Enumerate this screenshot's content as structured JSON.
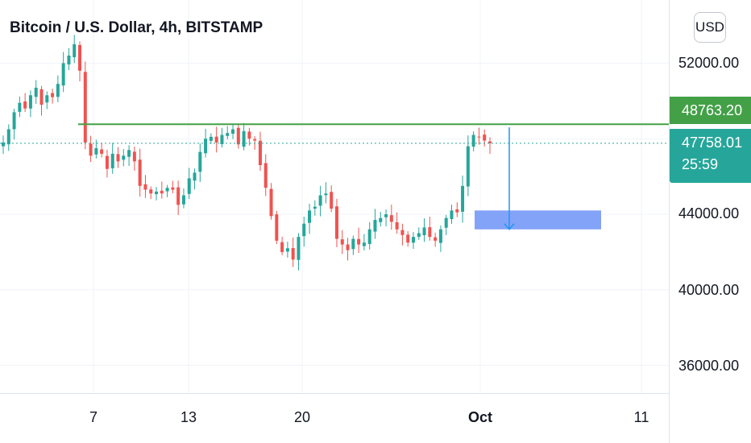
{
  "header": {
    "title": "Bitcoin / U.S. Dollar, 4h, BITSTAMP",
    "currency": "USD"
  },
  "price_axis": {
    "ticks": [
      "52000.00",
      "44000.00",
      "40000.00",
      "36000.00"
    ]
  },
  "time_axis": {
    "ticks": [
      "7",
      "13",
      "20",
      "Oct",
      "11"
    ],
    "major": "Oct"
  },
  "badges": {
    "level_price": "48763.20",
    "last_price": "47758.01",
    "countdown": "25:59"
  },
  "colors": {
    "up": "#26a69a",
    "down": "#ef5350",
    "level_line": "#43a047",
    "last_price_line": "#26a69a",
    "target_box": "#7c9ef8",
    "arrow": "#2196f3",
    "grid": "#f0f3fa"
  },
  "chart_data": {
    "type": "candlestick",
    "symbol": "Bitcoin / U.S. Dollar",
    "interval": "4h",
    "exchange": "BITSTAMP",
    "ylim": [
      34500,
      55000
    ],
    "horizontal_level": 48763.2,
    "last_price": 47758.01,
    "target_zone": {
      "low": 43200,
      "high": 44200
    },
    "projection_arrow": {
      "from": 48600,
      "to": 43200
    },
    "series": [
      {
        "name": "price_path",
        "values": [
          47800,
          48500,
          49400,
          49900,
          49600,
          50300,
          50700,
          49800,
          50300,
          50200,
          50900,
          52000,
          52400,
          53000,
          51600,
          47800,
          47100,
          47500,
          47200,
          46400,
          47200,
          46800,
          47100,
          47400,
          46800,
          45500,
          45300,
          45100,
          45200,
          45100,
          45400,
          45300,
          44500,
          45000,
          45900,
          46200,
          47300,
          48000,
          48100,
          47800,
          48200,
          48300,
          48500,
          47700,
          48400,
          48000,
          47900,
          46600,
          45400,
          43900,
          42600,
          42000,
          42200,
          41600,
          42800,
          43500,
          44200,
          44400,
          45000,
          45100,
          44300,
          42700,
          42400,
          42100,
          42700,
          42400,
          42500,
          43200,
          43700,
          43800,
          44000,
          43600,
          43200,
          42900,
          42500,
          42800,
          43000,
          43300,
          42800,
          42600,
          43200,
          43800,
          44200,
          44100,
          45500,
          47600,
          48200,
          48100,
          47900,
          47758
        ]
      }
    ]
  }
}
